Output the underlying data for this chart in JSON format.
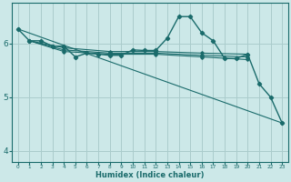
{
  "xlabel": "Humidex (Indice chaleur)",
  "ylabel": "",
  "bg_color": "#cce8e8",
  "grid_color": "#aacccc",
  "line_color": "#1a6b6b",
  "xlim": [
    -0.5,
    23.5
  ],
  "ylim": [
    3.8,
    6.75
  ],
  "yticks": [
    4,
    5,
    6
  ],
  "xticks": [
    0,
    1,
    2,
    3,
    4,
    5,
    6,
    7,
    8,
    9,
    10,
    11,
    12,
    13,
    14,
    15,
    16,
    17,
    18,
    19,
    20,
    21,
    22,
    23
  ],
  "series": [
    [
      0,
      6.27
    ],
    [
      1,
      6.05
    ],
    [
      2,
      6.05
    ],
    [
      3,
      5.95
    ],
    [
      4,
      5.95
    ],
    [
      5,
      5.75
    ],
    [
      6,
      5.82
    ],
    [
      7,
      5.8
    ],
    [
      8,
      5.78
    ],
    [
      9,
      5.78
    ],
    [
      10,
      5.88
    ],
    [
      11,
      5.87
    ],
    [
      12,
      5.87
    ],
    [
      13,
      6.1
    ],
    [
      14,
      6.5
    ],
    [
      15,
      6.5
    ],
    [
      16,
      6.2
    ],
    [
      17,
      6.05
    ],
    [
      18,
      5.72
    ],
    [
      19,
      5.72
    ],
    [
      20,
      5.8
    ],
    [
      21,
      5.25
    ],
    [
      22,
      5.0
    ],
    [
      23,
      4.52
    ]
  ],
  "extra_lines": [
    [
      [
        1,
        6.05
      ],
      [
        4,
        5.92
      ],
      [
        8,
        5.85
      ],
      [
        12,
        5.85
      ],
      [
        16,
        5.82
      ],
      [
        20,
        5.8
      ]
    ],
    [
      [
        1,
        6.05
      ],
      [
        4,
        5.88
      ],
      [
        8,
        5.82
      ],
      [
        12,
        5.82
      ],
      [
        16,
        5.78
      ],
      [
        20,
        5.75
      ]
    ],
    [
      [
        1,
        6.05
      ],
      [
        4,
        5.85
      ],
      [
        8,
        5.8
      ],
      [
        12,
        5.8
      ],
      [
        16,
        5.75
      ],
      [
        20,
        5.7
      ]
    ],
    [
      [
        0,
        6.27
      ],
      [
        23,
        4.52
      ]
    ]
  ]
}
